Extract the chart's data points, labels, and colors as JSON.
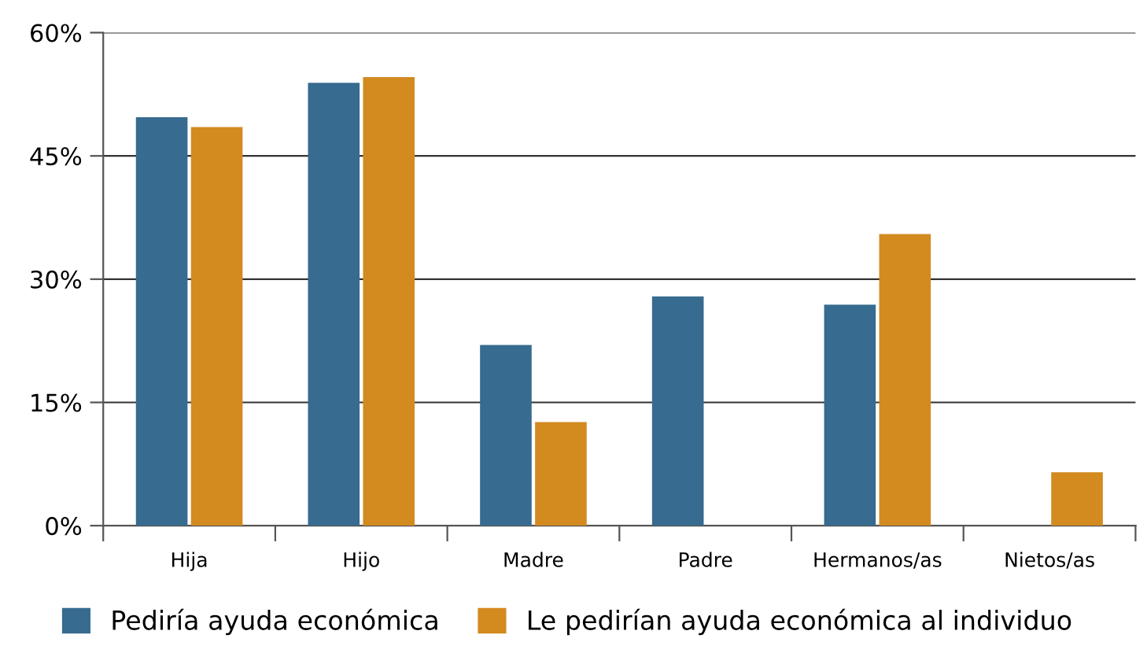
{
  "chart_data": {
    "type": "bar",
    "categories": [
      "Hija",
      "Hijo",
      "Madre",
      "Padre",
      "Hermanos/as",
      "Nietos/as"
    ],
    "series": [
      {
        "name": "Pediría ayuda económica",
        "color": "#376b8f",
        "values": [
          49.7,
          53.9,
          22.0,
          27.9,
          26.9,
          null
        ]
      },
      {
        "name": "Le pedirían ayuda económica al individuo",
        "color": "#d38a1f",
        "values": [
          48.5,
          54.6,
          12.6,
          null,
          35.5,
          6.5
        ]
      }
    ],
    "ylim": [
      0,
      60
    ],
    "yticks": [
      {
        "value": 0,
        "label": "0%"
      },
      {
        "value": 15,
        "label": "15%"
      },
      {
        "value": 30,
        "label": "30%"
      },
      {
        "value": 45,
        "label": "45%"
      },
      {
        "value": 60,
        "label": "60%"
      }
    ],
    "grid": "y",
    "legend": "bottom"
  }
}
